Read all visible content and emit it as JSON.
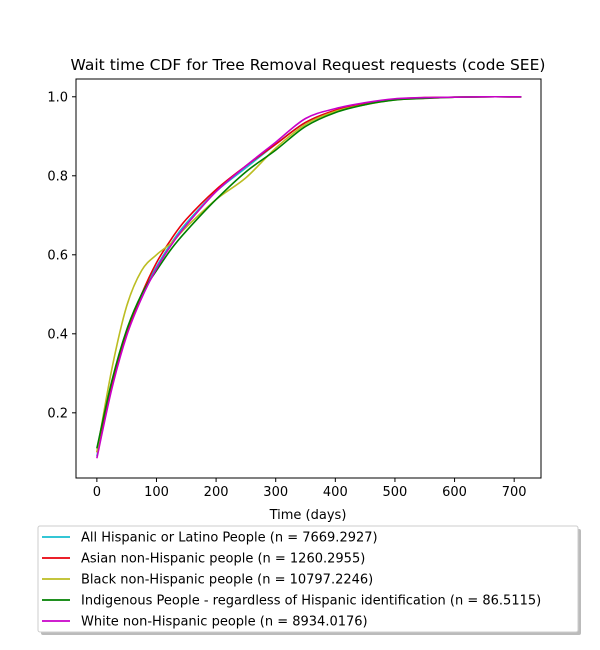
{
  "chart_data": {
    "type": "line",
    "title": "Wait time CDF for Tree Removal Request  requests (code SEE)",
    "xlabel": "Time (days)",
    "ylabel": "",
    "xlim": [
      -35,
      745
    ],
    "ylim": [
      0.035,
      1.045
    ],
    "xticks": [
      0,
      100,
      200,
      300,
      400,
      500,
      600,
      700
    ],
    "yticks": [
      0.2,
      0.4,
      0.6,
      0.8,
      1.0
    ],
    "ytick_labels": [
      "0.2",
      "0.4",
      "0.6",
      "0.8",
      "1.0"
    ],
    "grid": false,
    "legend_position": "below-plot",
    "series": [
      {
        "name": "All Hispanic or Latino People (n = 7669.2927)",
        "color": "#17becf",
        "x": [
          0,
          25,
          50,
          75,
          100,
          125,
          150,
          200,
          250,
          300,
          350,
          400,
          450,
          500,
          550,
          600,
          650,
          700,
          712
        ],
        "y": [
          0.09,
          0.27,
          0.4,
          0.5,
          0.57,
          0.63,
          0.68,
          0.76,
          0.82,
          0.88,
          0.935,
          0.965,
          0.982,
          0.993,
          0.997,
          0.999,
          1.0,
          1.0,
          1.0
        ]
      },
      {
        "name": "Asian non-Hispanic people (n = 1260.2955)",
        "color": "#e8000b",
        "x": [
          0,
          25,
          50,
          75,
          100,
          125,
          150,
          200,
          250,
          300,
          350,
          400,
          450,
          500,
          550,
          600,
          650,
          700,
          712
        ],
        "y": [
          0.1,
          0.27,
          0.4,
          0.5,
          0.58,
          0.64,
          0.69,
          0.765,
          0.825,
          0.88,
          0.935,
          0.966,
          0.983,
          0.994,
          0.998,
          0.999,
          1.0,
          1.0,
          1.0
        ]
      },
      {
        "name": "Black non-Hispanic people (n = 10797.2246)",
        "color": "#bcbd22",
        "x": [
          0,
          25,
          50,
          75,
          100,
          125,
          150,
          200,
          250,
          300,
          350,
          400,
          450,
          500,
          550,
          600,
          650,
          700,
          712
        ],
        "y": [
          0.1,
          0.31,
          0.47,
          0.56,
          0.6,
          0.63,
          0.67,
          0.74,
          0.795,
          0.87,
          0.93,
          0.963,
          0.98,
          0.992,
          0.996,
          0.999,
          1.0,
          1.0,
          1.0
        ]
      },
      {
        "name": "Indigenous People - regardless of Hispanic identification (n = 86.5115)",
        "color": "#008000",
        "x": [
          0,
          25,
          50,
          75,
          100,
          125,
          150,
          200,
          250,
          300,
          350,
          400,
          450,
          500,
          550,
          600,
          650,
          700,
          712
        ],
        "y": [
          0.11,
          0.28,
          0.41,
          0.5,
          0.56,
          0.615,
          0.66,
          0.74,
          0.81,
          0.865,
          0.925,
          0.96,
          0.98,
          0.992,
          0.996,
          0.999,
          1.0,
          1.0,
          1.0
        ]
      },
      {
        "name": "White non-Hispanic people (n = 8934.0176)",
        "color": "#c800c8",
        "x": [
          0,
          25,
          50,
          75,
          100,
          125,
          150,
          200,
          250,
          300,
          350,
          400,
          450,
          500,
          550,
          600,
          650,
          700,
          712
        ],
        "y": [
          0.085,
          0.26,
          0.395,
          0.49,
          0.565,
          0.625,
          0.675,
          0.76,
          0.825,
          0.885,
          0.945,
          0.97,
          0.985,
          0.995,
          0.998,
          0.999,
          1.0,
          1.0,
          1.0
        ]
      }
    ]
  }
}
